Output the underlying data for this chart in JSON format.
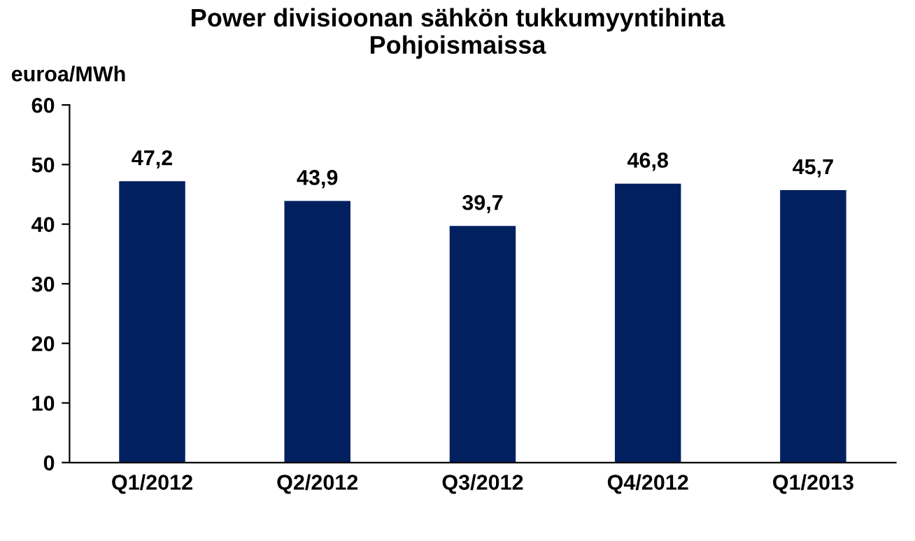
{
  "chart_data": {
    "type": "bar",
    "title": "Power divisioonan sähkön tukkumyyntihinta\nPohjoismaissa",
    "ylabel": "euroa/MWh",
    "categories": [
      "Q1/2012",
      "Q2/2012",
      "Q3/2012",
      "Q4/2012",
      "Q1/2013"
    ],
    "values": [
      47.2,
      43.9,
      39.7,
      46.8,
      45.7
    ],
    "value_labels": [
      "47,2",
      "43,9",
      "39,7",
      "46,8",
      "45,7"
    ],
    "color": "#002060",
    "ylim": [
      0,
      60
    ],
    "yticks": [
      0,
      10,
      20,
      30,
      40,
      50,
      60
    ],
    "grid": false
  }
}
